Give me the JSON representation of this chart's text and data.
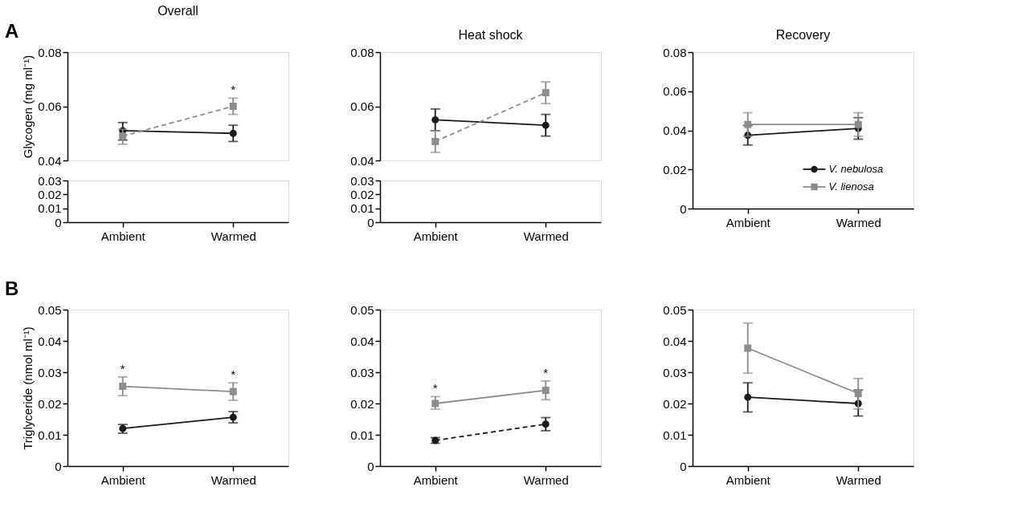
{
  "chart_data": [
    {
      "type": "line",
      "title": "Overall",
      "ylabel": "Glycogen (mg ml⁻¹)",
      "categories": [
        "Ambient",
        "Warmed"
      ],
      "ylim": [
        0.04,
        0.08
      ],
      "yticks": [
        0.04,
        0.06,
        0.08
      ],
      "tick_labels": "y",
      "annotations": [
        "A",
        {
          "text": "*",
          "x": "Warmed",
          "y": 0.063
        }
      ],
      "series": [
        {
          "color": "#1a1a1a",
          "marker": "circle",
          "line_style": "solid",
          "values": [
            0.051,
            0.05
          ],
          "errors": [
            [
              0.0475,
              0.054
            ],
            [
              0.047,
              0.053
            ]
          ]
        },
        {
          "color": "#8c8c8c",
          "marker": "square",
          "line_style": "dashed",
          "values": [
            0.049,
            0.06
          ],
          "errors": [
            [
              0.046,
              0.0515
            ],
            [
              0.057,
              0.063
            ]
          ]
        }
      ]
    },
    {
      "type": "line",
      "categories": [
        "Ambient",
        "Warmed"
      ],
      "ylim": [
        0,
        0.03
      ],
      "yticks": [
        0,
        0.01,
        0.02,
        0.03
      ]
    },
    {
      "type": "line",
      "title": "Heat shock",
      "categories": [
        "Ambient",
        "Warmed"
      ],
      "ylim": [
        0.04,
        0.08
      ],
      "yticks": [
        0.04,
        0.06,
        0.08
      ],
      "tick_labels": "y",
      "series": [
        {
          "color": "#1a1a1a",
          "marker": "circle",
          "line_style": "solid",
          "values": [
            0.055,
            0.053
          ],
          "errors": [
            [
              0.051,
              0.059
            ],
            [
              0.049,
              0.057
            ]
          ]
        },
        {
          "color": "#8c8c8c",
          "marker": "square",
          "line_style": "dashed",
          "values": [
            0.047,
            0.065
          ],
          "errors": [
            [
              0.043,
              0.051
            ],
            [
              0.061,
              0.069
            ]
          ]
        }
      ]
    },
    {
      "type": "line",
      "categories": [
        "Ambient",
        "Warmed"
      ],
      "ylim": [
        0,
        0.03
      ],
      "yticks": [
        0,
        0.01,
        0.02,
        0.03
      ]
    },
    {
      "type": "line",
      "title": "Recovery",
      "categories": [
        "Ambient",
        "Warmed"
      ],
      "ylim": [
        0,
        0.08
      ],
      "yticks": [
        0,
        0.02,
        0.04,
        0.06,
        0.08
      ],
      "legend": "bottom right",
      "series": [
        {
          "name": "V. nebulosa",
          "color": "#1a1a1a",
          "marker": "circle",
          "line_style": "solid",
          "values": [
            0.0375,
            0.041
          ],
          "errors": [
            [
              0.0325,
              0.0425
            ],
            [
              0.0355,
              0.0465
            ]
          ]
        },
        {
          "name": "V. lienosa",
          "color": "#8c8c8c",
          "marker": "square",
          "line_style": "solid",
          "values": [
            0.043,
            0.043
          ],
          "errors": [
            [
              0.037,
              0.049
            ],
            [
              0.037,
              0.049
            ]
          ]
        }
      ]
    },
    {
      "type": "line",
      "ylabel": "Triglyceride (nmol ml⁻¹)",
      "categories": [
        "Ambient",
        "Warmed"
      ],
      "ylim": [
        0,
        0.05
      ],
      "yticks": [
        0,
        0.01,
        0.02,
        0.03,
        0.04,
        0.05
      ],
      "annotations": [
        "B",
        {
          "text": "*",
          "x": "Ambient",
          "y": 0.0285
        },
        {
          "text": "*",
          "x": "Warmed",
          "y": 0.0266
        }
      ],
      "series": [
        {
          "color": "#1a1a1a",
          "marker": "circle",
          "line_style": "solid",
          "values": [
            0.012,
            0.0156
          ],
          "errors": [
            [
              0.0105,
              0.0133
            ],
            [
              0.0138,
              0.0174
            ]
          ]
        },
        {
          "color": "#8c8c8c",
          "marker": "square",
          "line_style": "solid",
          "values": [
            0.0255,
            0.0238
          ],
          "errors": [
            [
              0.0225,
              0.0285
            ],
            [
              0.021,
              0.0266
            ]
          ]
        }
      ]
    },
    {
      "type": "line",
      "categories": [
        "Ambient",
        "Warmed"
      ],
      "ylim": [
        0,
        0.05
      ],
      "yticks": [
        0,
        0.01,
        0.02,
        0.03,
        0.04,
        0.05
      ],
      "annotations": [
        {
          "text": "*",
          "x": "Ambient",
          "y": 0.0222
        },
        {
          "text": "*",
          "x": "Warmed",
          "y": 0.0272
        }
      ],
      "series": [
        {
          "color": "#1a1a1a",
          "marker": "circle",
          "line_style": "dashed",
          "values": [
            0.0082,
            0.0134
          ],
          "errors": [
            [
              0.0073,
              0.0091
            ],
            [
              0.0113,
              0.0155
            ]
          ]
        },
        {
          "color": "#8c8c8c",
          "marker": "square",
          "line_style": "solid",
          "values": [
            0.02,
            0.0242
          ],
          "errors": [
            [
              0.0182,
              0.0222
            ],
            [
              0.0212,
              0.0272
            ]
          ]
        }
      ]
    },
    {
      "type": "line",
      "categories": [
        "Ambient",
        "Warmed"
      ],
      "ylim": [
        0,
        0.05
      ],
      "yticks": [
        0,
        0.01,
        0.02,
        0.03,
        0.04,
        0.05
      ],
      "series": [
        {
          "color": "#1a1a1a",
          "marker": "circle",
          "line_style": "solid",
          "values": [
            0.022,
            0.02
          ],
          "errors": [
            [
              0.0173,
              0.0266
            ],
            [
              0.016,
              0.0243
            ]
          ]
        },
        {
          "color": "#8c8c8c",
          "marker": "square",
          "line_style": "solid",
          "values": [
            0.0377,
            0.0232
          ],
          "errors": [
            [
              0.0297,
              0.0457
            ],
            [
              0.0182,
              0.028
            ]
          ]
        }
      ]
    }
  ]
}
